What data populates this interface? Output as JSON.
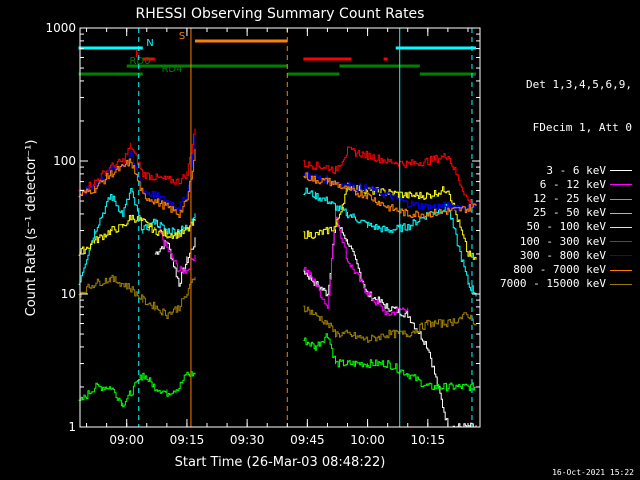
{
  "chart_data": {
    "type": "line",
    "title": "RHESSI Observing Summary Count Rates",
    "xlabel": "Start Time (26-Mar-03 08:48:22)",
    "ylabel": "Count Rate (s⁻¹ detector⁻¹)",
    "yscale": "log",
    "ylim": [
      1,
      1000
    ],
    "ytick_labels": [
      "1",
      "10",
      "100",
      "1000"
    ],
    "xlim": [
      "08:48:22",
      "10:28:00"
    ],
    "x_ticks": [
      "09:00",
      "09:15",
      "09:30",
      "09:45",
      "10:00",
      "10:15"
    ],
    "grid": false,
    "legend_position": "right",
    "legend_header": [
      "Det 1,3,4,5,6,9,",
      "FDecim 1, Att 0"
    ],
    "gaps": [
      [
        "09:17",
        "09:40"
      ]
    ],
    "x": [
      "08:48",
      "08:52",
      "08:56",
      "08:59",
      "09:01",
      "09:04",
      "09:07",
      "09:10",
      "09:13",
      "09:15",
      "09:17",
      "09:41",
      "09:44",
      "09:47",
      "09:50",
      "09:52",
      "09:55",
      "10:00",
      "10:05",
      "10:10",
      "10:15",
      "10:20",
      "10:25",
      "10:27"
    ],
    "series": [
      {
        "name": "3 - 6 keV",
        "color": "#ffffff",
        "values": [
          null,
          null,
          null,
          null,
          null,
          null,
          20,
          25,
          12,
          18,
          25,
          null,
          15,
          12,
          10,
          35,
          25,
          10,
          8,
          7,
          4,
          1,
          1,
          1
        ]
      },
      {
        "name": "6 - 12 keV",
        "color": "#ff00ff",
        "values": [
          null,
          null,
          null,
          null,
          null,
          null,
          35,
          22,
          15,
          15,
          20,
          null,
          16,
          12,
          8,
          40,
          18,
          10,
          7,
          8,
          null,
          null,
          null,
          null
        ]
      },
      {
        "name": "12 - 25 keV",
        "color": "#00ff00",
        "values": [
          1.5,
          2,
          2,
          1.5,
          1.8,
          2.5,
          2,
          1.8,
          2,
          2.5,
          2.5,
          null,
          4.5,
          4,
          5,
          3,
          3,
          3,
          3,
          2.5,
          2,
          2,
          2,
          2
        ]
      },
      {
        "name": "25 - 50 keV",
        "color": "#00ffff",
        "values": [
          12,
          30,
          55,
          40,
          60,
          30,
          35,
          30,
          30,
          32,
          40,
          null,
          60,
          55,
          50,
          45,
          40,
          33,
          30,
          32,
          40,
          45,
          12,
          10
        ]
      },
      {
        "name": "50 - 100 keV",
        "color": "#ffff00",
        "values": [
          20,
          25,
          30,
          32,
          38,
          35,
          30,
          28,
          28,
          30,
          35,
          null,
          28,
          28,
          30,
          32,
          65,
          60,
          58,
          55,
          55,
          62,
          20,
          18
        ]
      },
      {
        "name": "100 - 300 keV",
        "color": "#ff0000",
        "values": [
          58,
          70,
          90,
          100,
          130,
          80,
          75,
          72,
          70,
          80,
          180,
          null,
          95,
          92,
          90,
          85,
          120,
          110,
          100,
          95,
          100,
          110,
          50,
          48
        ]
      },
      {
        "name": "300 - 800 keV",
        "color": "#0000ff",
        "values": [
          55,
          65,
          85,
          95,
          110,
          60,
          55,
          50,
          45,
          55,
          150,
          null,
          80,
          75,
          72,
          70,
          65,
          62,
          55,
          48,
          45,
          46,
          45,
          48
        ]
      },
      {
        "name": "800 - 7000 keV",
        "color": "#ff7f00",
        "values": [
          55,
          62,
          80,
          90,
          100,
          55,
          50,
          45,
          40,
          50,
          120,
          null,
          78,
          72,
          70,
          68,
          60,
          55,
          45,
          40,
          40,
          42,
          44,
          46
        ]
      },
      {
        "name": "7000 - 15000 keV",
        "color": "#9b7d00",
        "values": [
          10,
          12,
          13,
          12,
          11,
          9,
          8,
          7,
          8,
          10,
          14,
          null,
          8,
          7,
          6,
          5,
          5,
          4.5,
          5,
          5,
          6,
          6,
          7,
          6
        ]
      }
    ],
    "annotations": [
      {
        "label": "N",
        "color": "#00ffff",
        "bars": [
          [
            "08:48",
            "09:04"
          ],
          [
            "10:07",
            "10:27"
          ]
        ]
      },
      {
        "label": "F",
        "color": "#ff0000",
        "bars": [
          [
            "09:04",
            "09:07"
          ],
          [
            "09:44",
            "09:56"
          ],
          [
            "10:04",
            "10:05"
          ]
        ]
      },
      {
        "label": "S",
        "color": "#ff7f00",
        "bars": [
          [
            "09:17",
            "09:40"
          ]
        ]
      },
      {
        "label": "RD0",
        "color": "#008000",
        "bars": [
          [
            "09:00",
            "09:40"
          ],
          [
            "09:53",
            "10:13"
          ]
        ]
      },
      {
        "label": "RD4",
        "color": "#008000",
        "bars": [
          [
            "08:48",
            "09:04"
          ],
          [
            "09:40",
            "09:53"
          ],
          [
            "10:13",
            "10:27"
          ]
        ]
      }
    ],
    "vlines": [
      {
        "time": "09:03",
        "color": "#00ffff",
        "style": "dashed"
      },
      {
        "time": "09:16",
        "color": "#ff7f00",
        "style": "solid"
      },
      {
        "time": "09:40",
        "color": "#ff7f00",
        "style": "dashed"
      },
      {
        "time": "10:08",
        "color": "#00ffff",
        "style": "solid"
      },
      {
        "time": "10:26",
        "color": "#00ffff",
        "style": "dashed"
      }
    ]
  },
  "footer_date": "16-Oct-2021 15:22"
}
